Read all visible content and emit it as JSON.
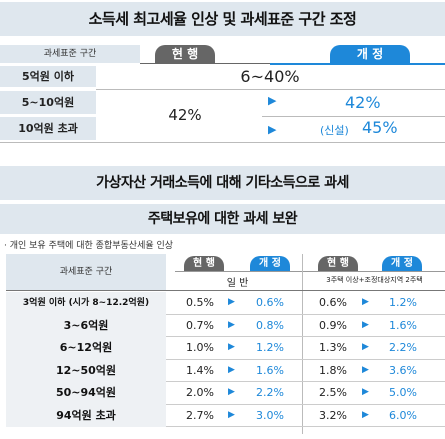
{
  "section1": {
    "title": "소득세 최고세율 인상 및 과세표준 구간 조정",
    "header_label": "과세표준 구간",
    "current_label": "현 행",
    "revised_label": "개 정",
    "rows": [
      {
        "label": "5억원 이하",
        "merged": "6~40%"
      },
      {
        "label": "5~10억원",
        "current": "42%",
        "revised": "42%"
      },
      {
        "label": "10억원 초과",
        "revised_prefix": "(신설)",
        "revised": "45%"
      }
    ]
  },
  "section2": {
    "title": "가상자산 거래소득에 대해 기타소득으로 과세"
  },
  "section3": {
    "title": "주택보유에 대한 과세 보완",
    "subtitle": "· 개인 보유 주택에 대한 종합부동산세율 인상",
    "header_label": "과세표준 구간",
    "current_label": "현 행",
    "revised_label": "개 정",
    "group1_label": "일 반",
    "group2_label": "3주택 이상+조정대상지역 2주택",
    "rows": [
      {
        "label": "3억원 이하 (시가 8~12.2억원)",
        "g1_cur": "0.5%",
        "g1_new": "0.6%",
        "g2_cur": "0.6%",
        "g2_new": "1.2%"
      },
      {
        "label": "3~6억원",
        "g1_cur": "0.7%",
        "g1_new": "0.8%",
        "g2_cur": "0.9%",
        "g2_new": "1.6%"
      },
      {
        "label": "6~12억원",
        "g1_cur": "1.0%",
        "g1_new": "1.2%",
        "g2_cur": "1.3%",
        "g2_new": "2.2%"
      },
      {
        "label": "12~50억원",
        "g1_cur": "1.4%",
        "g1_new": "1.6%",
        "g2_cur": "1.8%",
        "g2_new": "3.6%"
      },
      {
        "label": "50~94억원",
        "g1_cur": "2.0%",
        "g1_new": "2.2%",
        "g2_cur": "2.5%",
        "g2_new": "5.0%"
      },
      {
        "label": "94억원 초과",
        "g1_cur": "2.7%",
        "g1_new": "3.0%",
        "g2_cur": "3.2%",
        "g2_new": "6.0%"
      }
    ]
  }
}
